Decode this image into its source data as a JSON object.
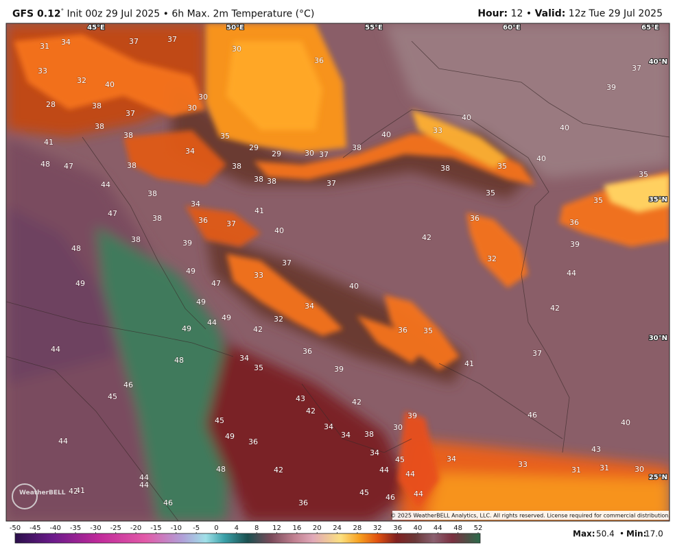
{
  "header": {
    "model": "GFS 0.12",
    "degree": "°",
    "init": "Init 00z 29 Jul 2025",
    "separator": "•",
    "product": "6h Max. 2m Temperature (°C)",
    "hour_label": "Hour:",
    "hour": "12",
    "valid_label": "Valid:",
    "valid": "12z Tue 29 Jul 2025"
  },
  "lon_labels": [
    "45°E",
    "50°E",
    "55°E",
    "60°E",
    "65°E"
  ],
  "lat_labels": [
    "40°N",
    "35°N",
    "30°N",
    "25°N"
  ],
  "temperature_labels": [
    31,
    34,
    37,
    37,
    30,
    36,
    37,
    39,
    33,
    32,
    40,
    28,
    38,
    37,
    30,
    30,
    38,
    38,
    40,
    33,
    40,
    40,
    41,
    35,
    29,
    29,
    30,
    37,
    38,
    34,
    48,
    47,
    38,
    38,
    38,
    35,
    40,
    35,
    44,
    38,
    38,
    37,
    35,
    38,
    34,
    35,
    47,
    38,
    36,
    37,
    41,
    36,
    36,
    40,
    42,
    38,
    39,
    48,
    39,
    32,
    37,
    49,
    33,
    44,
    49,
    47,
    40,
    49,
    34,
    42,
    44,
    49,
    32,
    49,
    42,
    36,
    35,
    44,
    36,
    37,
    34,
    48,
    35,
    41,
    39,
    46,
    45,
    43,
    42,
    42,
    39,
    46,
    45,
    40,
    34,
    34,
    38,
    49,
    30,
    44,
    36,
    34,
    34,
    43,
    45,
    33,
    44,
    44,
    42,
    48,
    31,
    31,
    30,
    44,
    44,
    41,
    42,
    45,
    46,
    44,
    36,
    46
  ],
  "logo": "WeatherBELL",
  "copyright": "© 2025 WeatherBELL Analytics, LLC. All rights reserved. License required for commercial distribution.",
  "colorbar": {
    "ticks": [
      -50,
      -45,
      -40,
      -35,
      -30,
      -25,
      -20,
      -15,
      -10,
      -5,
      0,
      4,
      8,
      12,
      16,
      20,
      24,
      28,
      32,
      36,
      40,
      44,
      48,
      52
    ]
  },
  "footer": {
    "max_label": "Max:",
    "max": "50.4",
    "min_label": "Min:",
    "min": "17.0"
  }
}
